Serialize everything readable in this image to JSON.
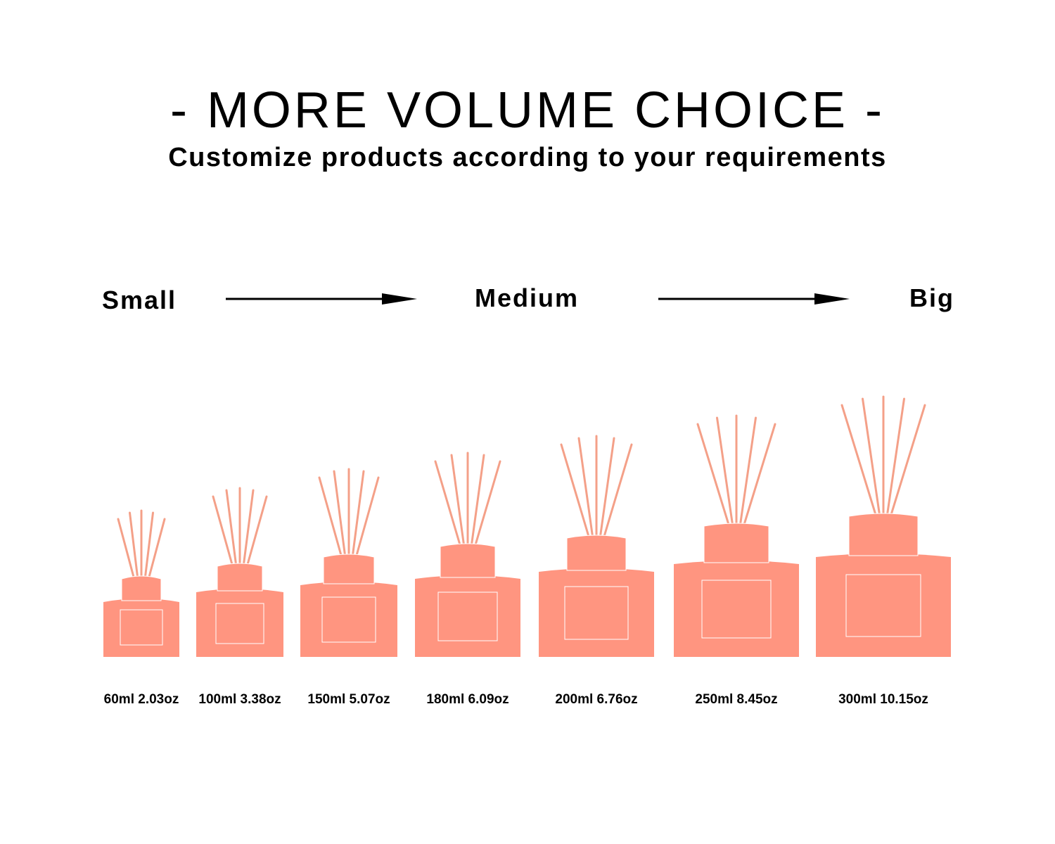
{
  "header": {
    "title": "- MORE VOLUME CHOICE -",
    "subtitle": "Customize products according to your requirements"
  },
  "scale": {
    "small": "Small",
    "medium": "Medium",
    "big": "Big"
  },
  "colors": {
    "bottle": "#ff9580",
    "reed": "#f4a088",
    "text": "#000000",
    "background": "#ffffff"
  },
  "volumes": [
    {
      "label": "60ml 2.03oz"
    },
    {
      "label": "100ml 3.38oz"
    },
    {
      "label": "150ml 5.07oz"
    },
    {
      "label": "180ml 6.09oz"
    },
    {
      "label": "200ml 6.76oz"
    },
    {
      "label": "250ml 8.45oz"
    },
    {
      "label": "300ml 10.15oz"
    }
  ]
}
